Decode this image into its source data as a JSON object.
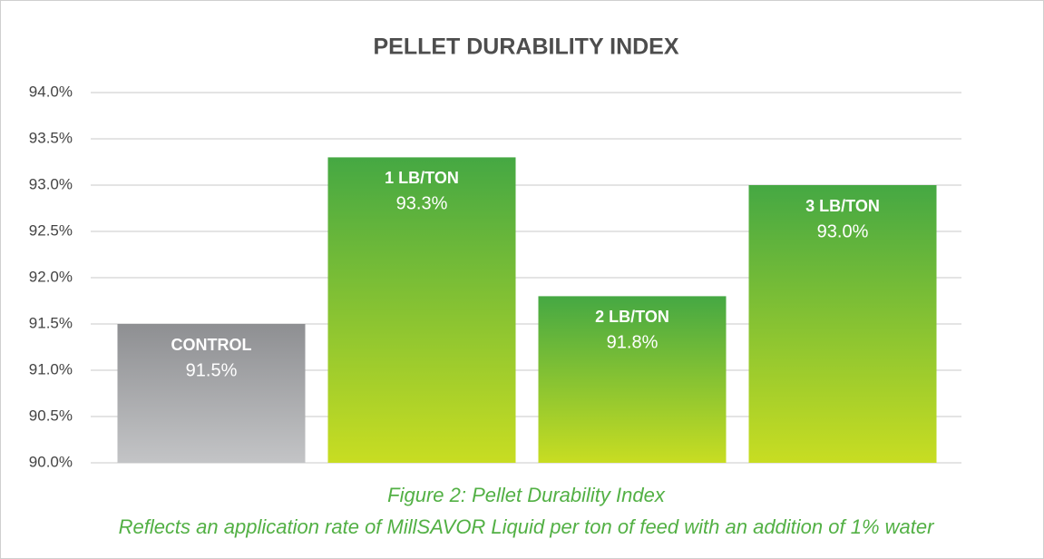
{
  "chart_data": {
    "type": "bar",
    "title": "PELLET DURABILITY INDEX",
    "categories": [
      "CONTROL",
      "1 LB/TON",
      "2 LB/TON",
      "3 LB/TON"
    ],
    "values": [
      91.5,
      93.3,
      91.8,
      93.0
    ],
    "value_labels": [
      "91.5%",
      "93.3%",
      "91.8%",
      "93.0%"
    ],
    "colors": [
      "#8e8f92",
      "#45a843",
      "#45a843",
      "#45a843"
    ],
    "colors_bottom": [
      "#c3c4c6",
      "#c8dd22",
      "#c8dd22",
      "#c8dd22"
    ],
    "ylim": [
      90,
      94
    ],
    "yticks": [
      {
        "value": 90,
        "label": "90.0%"
      },
      {
        "value": 90.5,
        "label": "90.5%"
      },
      {
        "value": 91,
        "label": "91.0%"
      },
      {
        "value": 91.5,
        "label": "91.5%"
      },
      {
        "value": 92,
        "label": "92.0%"
      },
      {
        "value": 92.5,
        "label": "92.5%"
      },
      {
        "value": 93,
        "label": "93.0%"
      },
      {
        "value": 93.5,
        "label": "93.5%"
      },
      {
        "value": 94,
        "label": "94.0%"
      }
    ],
    "grid": true,
    "caption": [
      "Figure 2: Pellet Durability Index",
      "Reflects an application rate of MillSAVOR Liquid per ton of feed with an addition of 1% water"
    ]
  }
}
